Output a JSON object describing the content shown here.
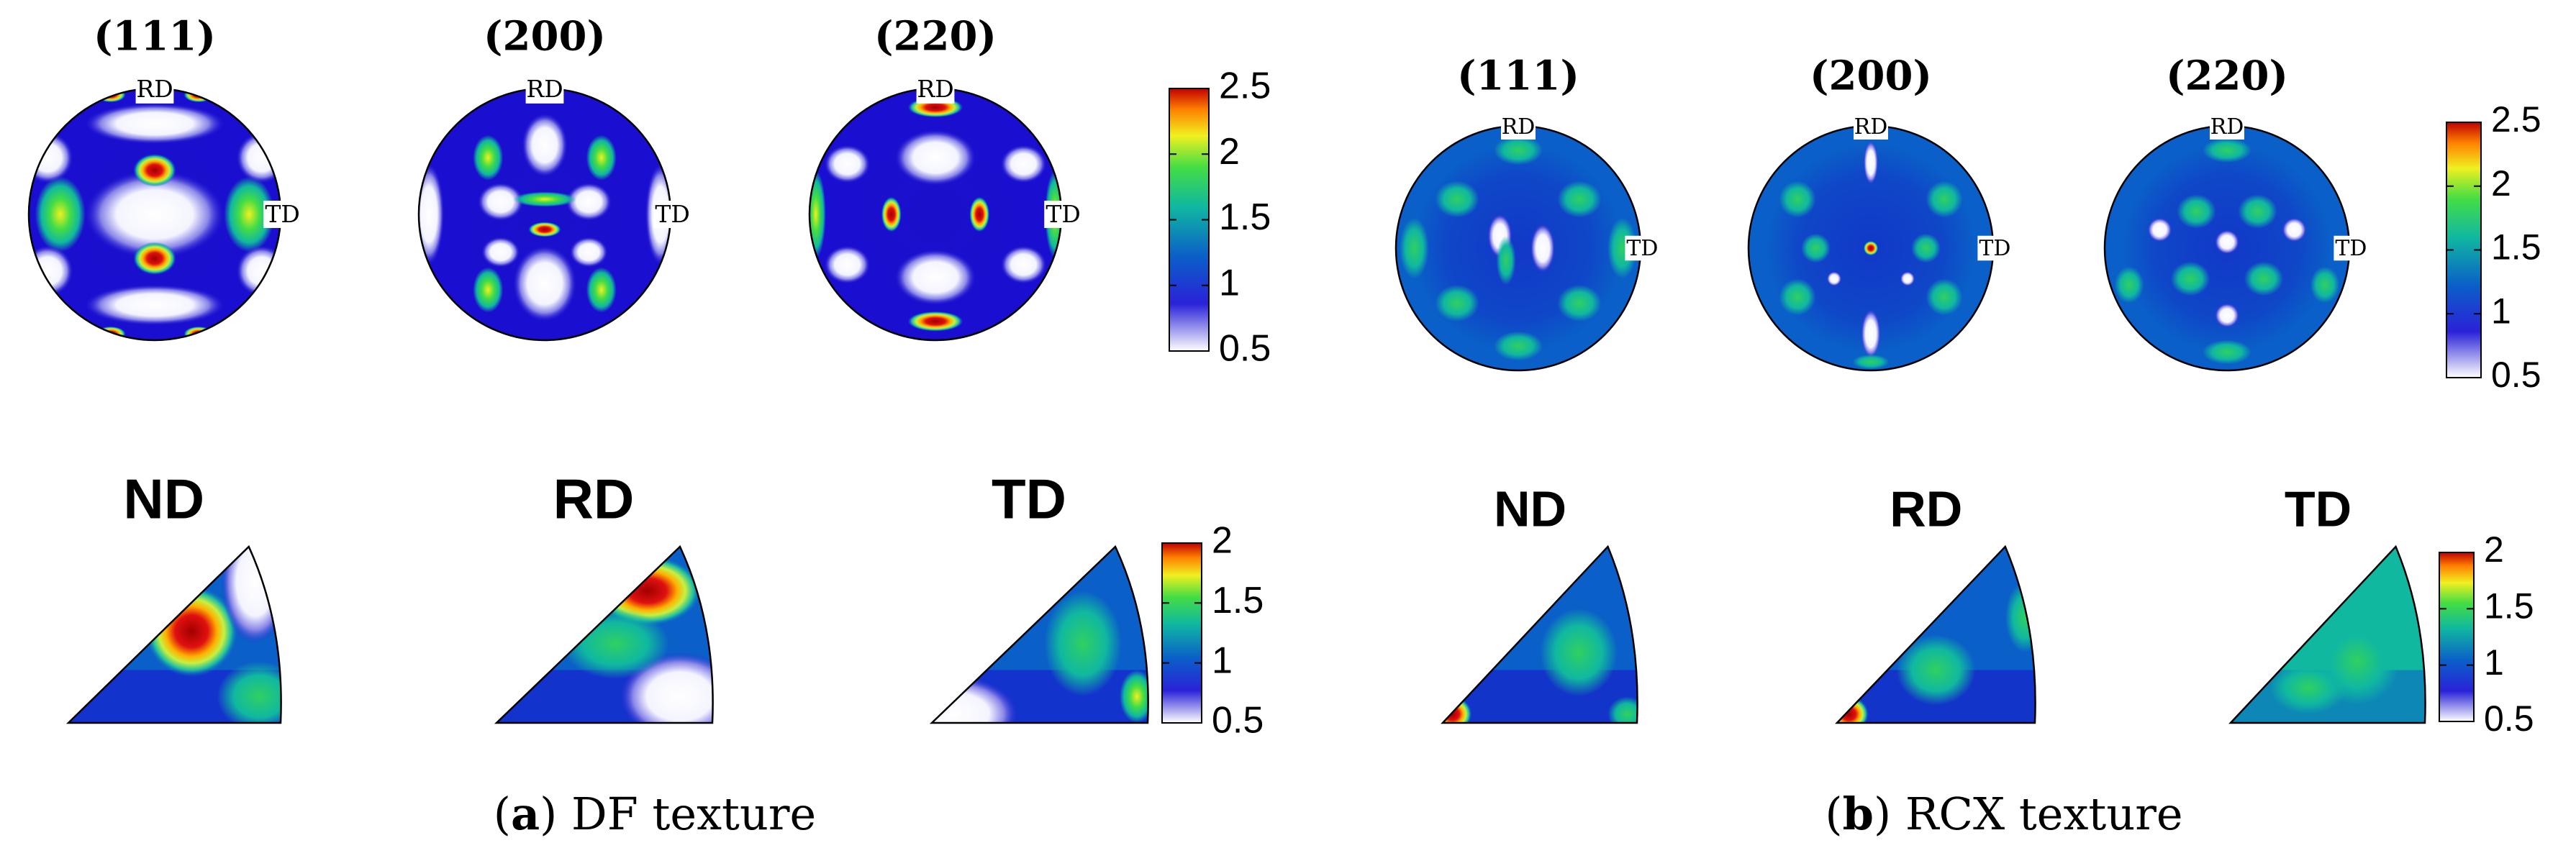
{
  "panels": [
    {
      "id": "a",
      "caption_letter": "a",
      "caption_text": "DF texture",
      "pole_figures": [
        {
          "title": "(111)",
          "rd_label": "RD",
          "td_label": "TD"
        },
        {
          "title": "(200)",
          "rd_label": "RD",
          "td_label": "TD"
        },
        {
          "title": "(220)",
          "rd_label": "RD",
          "td_label": "TD"
        }
      ],
      "pf_colorbar_ticks": [
        "2.5",
        "2",
        "1.5",
        "1",
        "0.5"
      ],
      "ipfs": [
        {
          "title": "ND"
        },
        {
          "title": "RD"
        },
        {
          "title": "TD"
        }
      ],
      "ipf_colorbar_ticks": [
        "2",
        "1.5",
        "1",
        "0.5"
      ]
    },
    {
      "id": "b",
      "caption_letter": "b",
      "caption_text": "RCX texture",
      "pole_figures": [
        {
          "title": "(111)",
          "rd_label": "RD",
          "td_label": "TD"
        },
        {
          "title": "(200)",
          "rd_label": "RD",
          "td_label": "TD"
        },
        {
          "title": "(220)",
          "rd_label": "RD",
          "td_label": "TD"
        }
      ],
      "pf_colorbar_ticks": [
        "2.5",
        "2",
        "1.5",
        "1",
        "0.5"
      ],
      "ipfs": [
        {
          "title": "ND"
        },
        {
          "title": "RD"
        },
        {
          "title": "TD"
        }
      ],
      "ipf_colorbar_ticks": [
        "2",
        "1.5",
        "1",
        "0.5"
      ]
    }
  ],
  "colormap": [
    "#ffffff",
    "#1a0fd0",
    "#0066cc",
    "#10b8a0",
    "#3fd84a",
    "#f0f020",
    "#ff8000",
    "#c80000"
  ]
}
